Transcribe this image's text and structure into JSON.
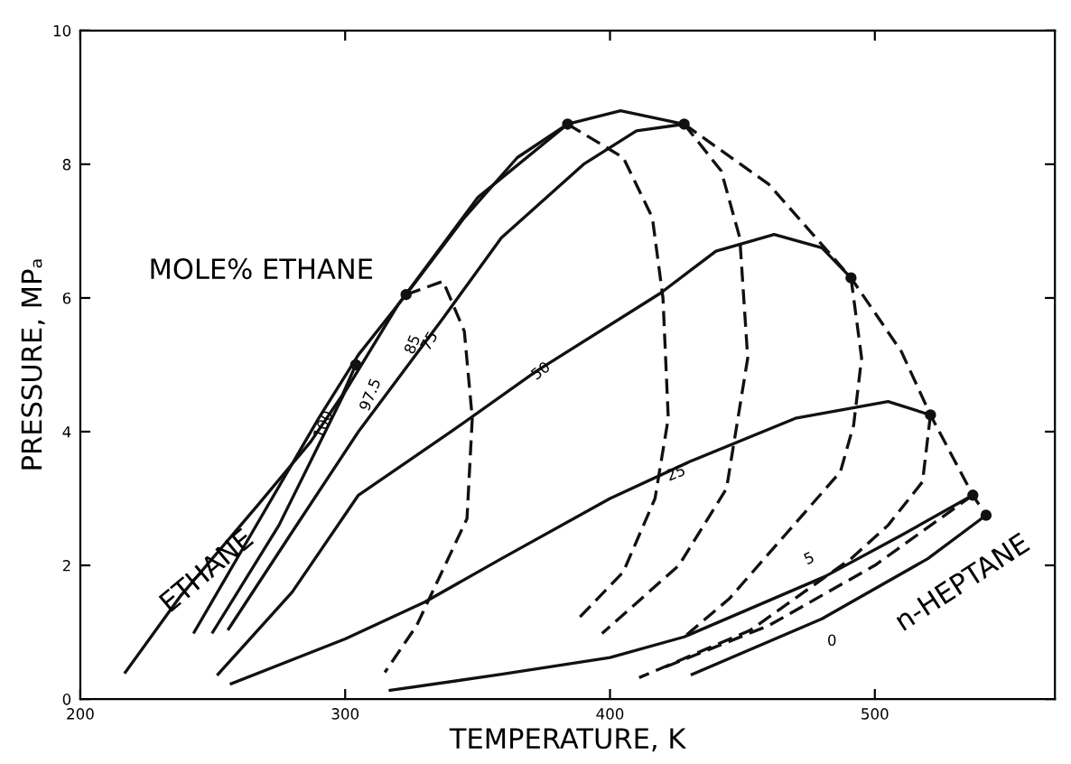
{
  "chart_data": {
    "type": "line",
    "xlabel": "TEMPERATURE, K",
    "ylabel": "PRESSURE, MPₐ",
    "xlim": [
      200,
      568
    ],
    "ylim": [
      0,
      10
    ],
    "xticks": [
      200,
      300,
      400,
      500
    ],
    "yticks": [
      0,
      2,
      4,
      6,
      8,
      10
    ],
    "grid": false,
    "series": [
      {
        "color": "#111111",
        "line_style": "solid",
        "x": [
          217,
          238,
          267,
          287,
          299,
          304
        ],
        "values": [
          0.4,
          1.55,
          2.9,
          3.85,
          4.55,
          5.0
        ]
      },
      {
        "color": "#111111",
        "line_style": "solid",
        "x": [
          243,
          265,
          290,
          305,
          323,
          345,
          365,
          384,
          404,
          428
        ],
        "values": [
          1.0,
          2.5,
          4.2,
          5.15,
          6.05,
          7.2,
          8.1,
          8.6,
          8.8,
          8.6
        ]
      },
      {
        "color": "#111111",
        "line_style": "solid",
        "x": [
          250,
          275,
          300,
          320,
          350,
          384
        ],
        "values": [
          1.0,
          2.6,
          4.6,
          5.9,
          7.5,
          8.6
        ]
      },
      {
        "color": "#111111",
        "line_style": "solid",
        "x": [
          256,
          280,
          305,
          337,
          359,
          390,
          410,
          428
        ],
        "values": [
          1.05,
          2.5,
          4.0,
          5.7,
          6.9,
          8.0,
          8.5,
          8.6
        ]
      },
      {
        "color": "#111111",
        "line_style": "solid",
        "x": [
          252,
          280,
          305,
          340,
          372,
          419,
          440,
          462,
          480,
          491
        ],
        "values": [
          0.37,
          1.6,
          3.05,
          4.0,
          4.9,
          6.07,
          6.7,
          6.95,
          6.75,
          6.3
        ]
      },
      {
        "color": "#111111",
        "line_style": "solid",
        "x": [
          257,
          300,
          330,
          359,
          400,
          430,
          470,
          505,
          521
        ],
        "values": [
          0.23,
          0.9,
          1.45,
          2.1,
          3.0,
          3.55,
          4.2,
          4.45,
          4.25
        ]
      },
      {
        "color": "#111111",
        "line_style": "solid",
        "x": [
          317,
          359,
          400,
          428,
          481,
          510,
          537
        ],
        "values": [
          0.13,
          0.37,
          0.62,
          0.93,
          1.83,
          2.45,
          3.05
        ]
      },
      {
        "color": "#111111",
        "line_style": "solid",
        "x": [
          431,
          480,
          520,
          542
        ],
        "values": [
          0.37,
          1.2,
          2.1,
          2.75
        ]
      },
      {
        "color": "#111111",
        "line_style": "dashed",
        "x": [
          428,
          460,
          491,
          510,
          521,
          537,
          542
        ],
        "values": [
          8.6,
          7.7,
          6.3,
          5.2,
          4.25,
          3.05,
          2.75
        ]
      },
      {
        "color": "#111111",
        "line_style": "dashed",
        "x": [
          323,
          337,
          345,
          348,
          346,
          327,
          315
        ],
        "values": [
          6.05,
          6.25,
          5.5,
          4.2,
          2.7,
          1.1,
          0.4
        ]
      },
      {
        "color": "#111111",
        "line_style": "dashed",
        "x": [
          384,
          405,
          416,
          420,
          422,
          417,
          405,
          388
        ],
        "values": [
          8.6,
          8.1,
          7.2,
          6.0,
          4.2,
          3.0,
          1.9,
          1.2
        ]
      },
      {
        "color": "#111111",
        "line_style": "dashed",
        "x": [
          428,
          442,
          449,
          452,
          444,
          426,
          397
        ],
        "values": [
          8.6,
          7.9,
          6.9,
          5.1,
          3.15,
          2.0,
          0.98
        ]
      },
      {
        "color": "#111111",
        "line_style": "dashed",
        "x": [
          491,
          495,
          492,
          487,
          466,
          445,
          428
        ],
        "values": [
          6.3,
          5.1,
          4.1,
          3.4,
          2.45,
          1.5,
          0.93
        ]
      },
      {
        "color": "#111111",
        "line_style": "dashed",
        "x": [
          521,
          518,
          505,
          491,
          453,
          411
        ],
        "values": [
          4.25,
          3.25,
          2.6,
          2.1,
          1.03,
          0.32
        ]
      },
      {
        "color": "#111111",
        "line_style": "dashed",
        "x": [
          537,
          500,
          460,
          419
        ],
        "values": [
          3.05,
          2.0,
          1.1,
          0.45
        ]
      },
      {
        "type": "scatter",
        "color": "#111111",
        "marker": "circle",
        "x": [
          304,
          323,
          384,
          428,
          491,
          521,
          537,
          542
        ],
        "values": [
          5.0,
          6.05,
          8.6,
          8.6,
          6.3,
          4.25,
          3.05,
          2.75
        ]
      }
    ],
    "annotations": [
      "MOLE% ETHANE",
      {
        "text": "ETHANE",
        "x": 248,
        "y": 1.9
      },
      {
        "text": "n-HEPTANE",
        "x": 520,
        "y": 2.1
      },
      {
        "text": "100",
        "x": 292,
        "y": 4.1
      },
      {
        "text": "97.5",
        "x": 305,
        "y": 5.15
      },
      {
        "text": "85",
        "x": 320,
        "y": 5.9
      },
      {
        "text": "75",
        "x": 332,
        "y": 5.35
      },
      {
        "text": "50",
        "x": 374,
        "y": 4.9
      },
      {
        "text": "25",
        "x": 425,
        "y": 3.37
      },
      {
        "text": "5",
        "x": 481,
        "y": 1.83
      },
      {
        "text": "0",
        "x": 480,
        "y": 1.2
      }
    ]
  }
}
